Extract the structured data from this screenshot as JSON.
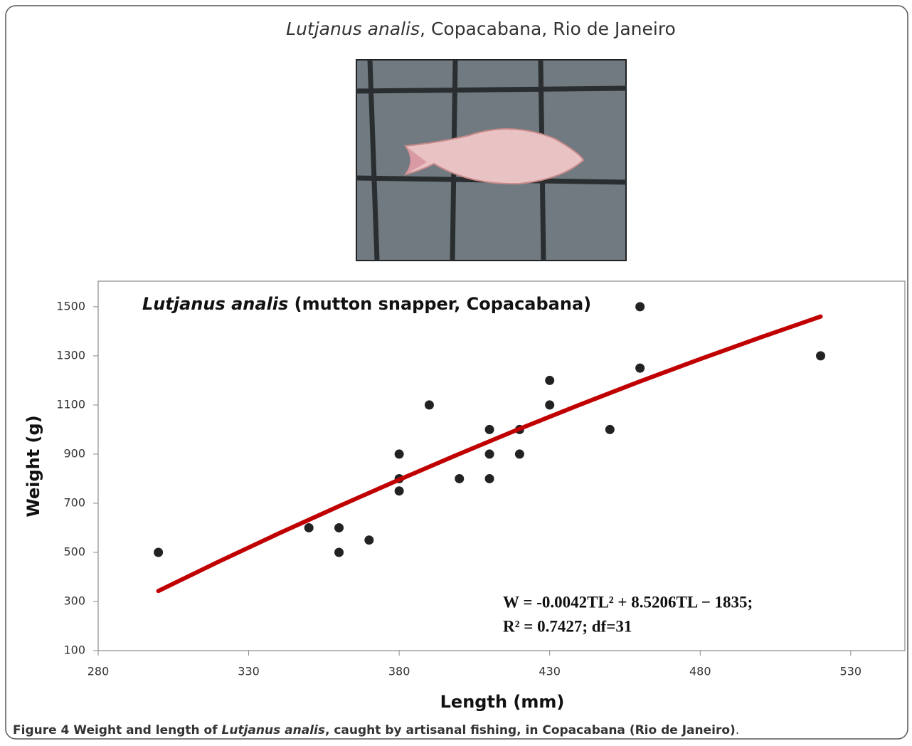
{
  "header": {
    "title_runs": [
      {
        "text": "Lutjanus analis",
        "italic": true
      },
      {
        "text": ", Copacabana, Rio de Janeiro"
      }
    ]
  },
  "chart_data": {
    "type": "scatter",
    "title_runs": [
      {
        "text": "Lutjanus analis",
        "italic": true
      },
      {
        "text": " (mutton snapper, Copacabana)"
      }
    ],
    "xlabel": "Length (mm)",
    "ylabel": "Weight (g)",
    "xlim": [
      280,
      548
    ],
    "ylim": [
      100,
      1604
    ],
    "xticks": [
      280,
      330,
      380,
      430,
      480,
      530
    ],
    "yticks": [
      100,
      300,
      500,
      700,
      900,
      1100,
      1300,
      1500
    ],
    "series": [
      {
        "type": "scatter",
        "color": "#222222",
        "x": [
          300,
          350,
          360,
          360,
          370,
          380,
          380,
          380,
          390,
          400,
          410,
          410,
          410,
          420,
          420,
          430,
          430,
          450,
          460,
          460,
          520
        ],
        "values": [
          500,
          600,
          600,
          500,
          550,
          900,
          800,
          750,
          1100,
          800,
          1000,
          900,
          800,
          1000,
          900,
          1200,
          1100,
          1000,
          1500,
          1250,
          1300
        ]
      },
      {
        "type": "line",
        "color": "#c00000",
        "x": [
          300,
          320,
          340,
          360,
          380,
          400,
          420,
          440,
          460,
          480,
          500,
          520
        ],
        "values": [
          343,
          462,
          577,
          688,
          796,
          901,
          1003,
          1101,
          1196,
          1287,
          1375,
          1460
        ]
      }
    ],
    "annotations": [
      "W = -0.0042TL² + 8.5206TL − 1835;",
      "R² = 0.7427; df=31"
    ]
  },
  "caption": {
    "runs": [
      {
        "text": "Figure 4",
        "bold": true
      },
      {
        "text": " Weight and length of ",
        "bold": true
      },
      {
        "text": "Lutjanus analis",
        "bold": true,
        "italic": true
      },
      {
        "text": ", caught by artisanal fishing, in Copacabana (Rio de Janeiro)",
        "bold": true
      },
      {
        "text": ".",
        "bold": false
      }
    ]
  }
}
